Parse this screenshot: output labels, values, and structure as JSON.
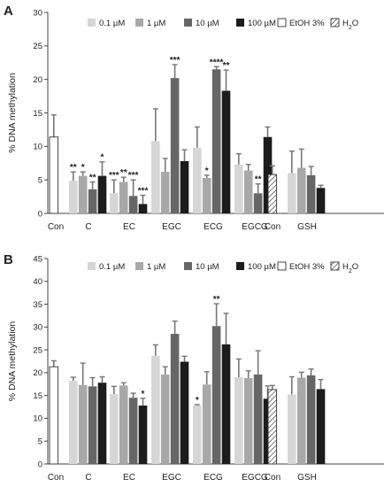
{
  "chart_data": [
    {
      "type": "bar",
      "panel": "A",
      "ylabel": "% DNA methylation",
      "ylim": [
        0,
        30
      ],
      "yticks": [
        0,
        5,
        10,
        15,
        20,
        25,
        30
      ],
      "legend": [
        "0.1 µM",
        "1 µM",
        "10 µM",
        "100 µM",
        "EtOH 3%",
        "H2O"
      ],
      "group_labels": [
        "Con",
        "C",
        "EC",
        "EGC",
        "ECG",
        "EGCG",
        "Con",
        "GSH"
      ],
      "bars": [
        {
          "group": "Con",
          "cond": "EtOH 3%",
          "value": 11.4,
          "err": 3.3,
          "sig": ""
        },
        {
          "group": "C",
          "cond": "0.1 µM",
          "value": 4.9,
          "err": 1.3,
          "sig": "**"
        },
        {
          "group": "C",
          "cond": "1 µM",
          "value": 5.6,
          "err": 0.6,
          "sig": "*"
        },
        {
          "group": "C",
          "cond": "10 µM",
          "value": 3.6,
          "err": 1.1,
          "sig": "**"
        },
        {
          "group": "C",
          "cond": "100 µM",
          "value": 5.6,
          "err": 2.1,
          "sig": "*"
        },
        {
          "group": "EC",
          "cond": "0.1 µM",
          "value": 3.0,
          "err": 2.0,
          "sig": "***"
        },
        {
          "group": "EC",
          "cond": "1 µM",
          "value": 4.7,
          "err": 0.7,
          "sig": "**"
        },
        {
          "group": "EC",
          "cond": "10 µM",
          "value": 2.6,
          "err": 2.4,
          "sig": "***"
        },
        {
          "group": "EC",
          "cond": "100 µM",
          "value": 1.4,
          "err": 1.3,
          "sig": "***"
        },
        {
          "group": "EGC",
          "cond": "0.1 µM",
          "value": 10.8,
          "err": 4.8,
          "sig": ""
        },
        {
          "group": "EGC",
          "cond": "1 µM",
          "value": 6.2,
          "err": 2.0,
          "sig": ""
        },
        {
          "group": "EGC",
          "cond": "10 µM",
          "value": 20.2,
          "err": 2.0,
          "sig": "***"
        },
        {
          "group": "EGC",
          "cond": "100 µM",
          "value": 7.8,
          "err": 1.7,
          "sig": ""
        },
        {
          "group": "ECG",
          "cond": "0.1 µM",
          "value": 9.8,
          "err": 3.1,
          "sig": ""
        },
        {
          "group": "ECG",
          "cond": "1 µM",
          "value": 5.3,
          "err": 0.4,
          "sig": "*"
        },
        {
          "group": "ECG",
          "cond": "10 µM",
          "value": 21.5,
          "err": 0.4,
          "sig": "****"
        },
        {
          "group": "ECG",
          "cond": "100 µM",
          "value": 18.3,
          "err": 3.1,
          "sig": "**"
        },
        {
          "group": "EGCG",
          "cond": "0.1 µM",
          "value": 7.3,
          "err": 1.6,
          "sig": ""
        },
        {
          "group": "EGCG",
          "cond": "1 µM",
          "value": 6.4,
          "err": 0.9,
          "sig": ""
        },
        {
          "group": "EGCG",
          "cond": "10 µM",
          "value": 3.0,
          "err": 1.4,
          "sig": "**"
        },
        {
          "group": "EGCG",
          "cond": "100 µM",
          "value": 11.4,
          "err": 1.5,
          "sig": ""
        },
        {
          "group": "Con",
          "cond": "H2O",
          "value": 5.8,
          "err": 1.3,
          "sig": ""
        },
        {
          "group": "GSH",
          "cond": "0.1 µM",
          "value": 6.0,
          "err": 3.3,
          "sig": ""
        },
        {
          "group": "GSH",
          "cond": "1 µM",
          "value": 6.8,
          "err": 2.8,
          "sig": ""
        },
        {
          "group": "GSH",
          "cond": "10 µM",
          "value": 5.7,
          "err": 1.3,
          "sig": ""
        },
        {
          "group": "GSH",
          "cond": "100 µM",
          "value": 3.8,
          "err": 0.4,
          "sig": ""
        }
      ]
    },
    {
      "type": "bar",
      "panel": "B",
      "ylabel": "% DNA methylation",
      "ylim": [
        0,
        45
      ],
      "yticks": [
        0,
        5,
        10,
        15,
        20,
        25,
        30,
        35,
        40,
        45
      ],
      "legend": [
        "0.1 µM",
        "1 µM",
        "10 µM",
        "100 µM",
        "EtOH 3%",
        "H2O"
      ],
      "group_labels": [
        "Con",
        "C",
        "EC",
        "EGC",
        "ECG",
        "EGCG",
        "Con",
        "GSH"
      ],
      "bars": [
        {
          "group": "Con",
          "cond": "EtOH 3%",
          "value": 21.3,
          "err": 1.3,
          "sig": ""
        },
        {
          "group": "C",
          "cond": "0.1 µM",
          "value": 18.2,
          "err": 0.8,
          "sig": ""
        },
        {
          "group": "C",
          "cond": "1 µM",
          "value": 17.3,
          "err": 4.8,
          "sig": ""
        },
        {
          "group": "C",
          "cond": "10 µM",
          "value": 17.0,
          "err": 1.9,
          "sig": ""
        },
        {
          "group": "C",
          "cond": "100 µM",
          "value": 17.8,
          "err": 1.3,
          "sig": ""
        },
        {
          "group": "EC",
          "cond": "0.1 µM",
          "value": 15.3,
          "err": 1.7,
          "sig": ""
        },
        {
          "group": "EC",
          "cond": "1 µM",
          "value": 17.2,
          "err": 0.6,
          "sig": ""
        },
        {
          "group": "EC",
          "cond": "10 µM",
          "value": 14.5,
          "err": 1.0,
          "sig": ""
        },
        {
          "group": "EC",
          "cond": "100 µM",
          "value": 12.8,
          "err": 1.6,
          "sig": "*"
        },
        {
          "group": "EGC",
          "cond": "0.1 µM",
          "value": 23.7,
          "err": 2.4,
          "sig": ""
        },
        {
          "group": "EGC",
          "cond": "1 µM",
          "value": 19.6,
          "err": 1.7,
          "sig": ""
        },
        {
          "group": "EGC",
          "cond": "10 µM",
          "value": 28.5,
          "err": 2.8,
          "sig": ""
        },
        {
          "group": "EGC",
          "cond": "100 µM",
          "value": 22.4,
          "err": 1.2,
          "sig": ""
        },
        {
          "group": "ECG",
          "cond": "0.1 µM",
          "value": 12.8,
          "err": 0.2,
          "sig": "*"
        },
        {
          "group": "ECG",
          "cond": "1 µM",
          "value": 17.4,
          "err": 2.8,
          "sig": ""
        },
        {
          "group": "ECG",
          "cond": "10 µM",
          "value": 30.2,
          "err": 4.9,
          "sig": "**"
        },
        {
          "group": "ECG",
          "cond": "100 µM",
          "value": 26.2,
          "err": 6.8,
          "sig": ""
        },
        {
          "group": "EGCG",
          "cond": "0.1 µM",
          "value": 19.0,
          "err": 4.0,
          "sig": ""
        },
        {
          "group": "EGCG",
          "cond": "1 µM",
          "value": 18.8,
          "err": 1.6,
          "sig": ""
        },
        {
          "group": "EGCG",
          "cond": "10 µM",
          "value": 19.6,
          "err": 5.2,
          "sig": ""
        },
        {
          "group": "EGCG",
          "cond": "100 µM",
          "value": 14.3,
          "err": 2.8,
          "sig": ""
        },
        {
          "group": "Con",
          "cond": "H2O",
          "value": 16.3,
          "err": 0.9,
          "sig": ""
        },
        {
          "group": "GSH",
          "cond": "0.1 µM",
          "value": 15.2,
          "err": 3.9,
          "sig": ""
        },
        {
          "group": "GSH",
          "cond": "1 µM",
          "value": 18.9,
          "err": 1.2,
          "sig": ""
        },
        {
          "group": "GSH",
          "cond": "10 µM",
          "value": 19.4,
          "err": 1.4,
          "sig": ""
        },
        {
          "group": "GSH",
          "cond": "100 µM",
          "value": 16.4,
          "err": 2.1,
          "sig": ""
        }
      ]
    }
  ],
  "colors": {
    "0.1 µM": "#d6d6d6",
    "1 µM": "#a8a8a8",
    "10 µM": "#666666",
    "100 µM": "#1c1c1c",
    "EtOH 3%": "#ffffff",
    "H2O": "#ffffff",
    "axis": "#444444",
    "error": "#777777"
  }
}
